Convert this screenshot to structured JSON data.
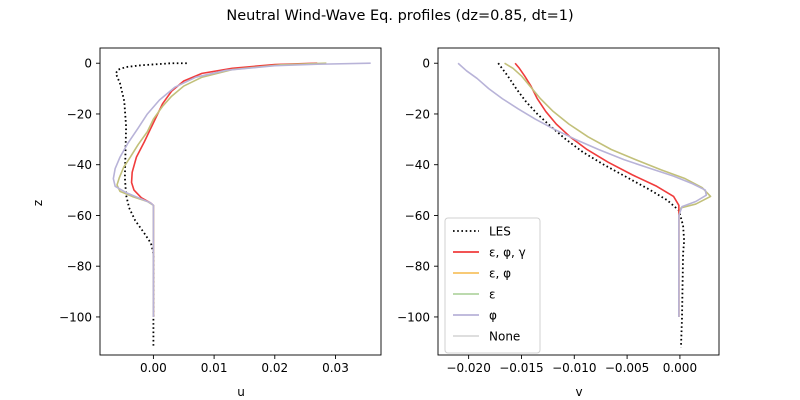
{
  "figure": {
    "title": "Neutral Wind-Wave Eq. profiles (dz=0.85, dt=1)"
  },
  "colors": {
    "LES": "#000000",
    "ε, φ, γ": "#f03c3c",
    "ε, φ": "#f7c262",
    "ε": "#b3d4a2",
    "φ": "#b8b3d8",
    "None": "#d9d9d9",
    "olive_overlap": "#c2c07a"
  },
  "chart_data": [
    {
      "type": "line",
      "title": "",
      "xlabel": "u",
      "ylabel": "z",
      "xlim": [
        -0.0088,
        0.0375
      ],
      "ylim": [
        -115,
        6
      ],
      "xticks": [
        0.0,
        0.01,
        0.02,
        0.03
      ],
      "xtick_labels": [
        "0.00",
        "0.01",
        "0.02",
        "0.03"
      ],
      "yticks": [
        0,
        -20,
        -40,
        -60,
        -80,
        -100
      ],
      "ytick_labels": [
        "0",
        "−20",
        "−40",
        "−60",
        "−80",
        "−100"
      ],
      "grid": false,
      "series": [
        {
          "name": "LES",
          "style": "dotted",
          "x": [
            0.0055,
            0.003,
            0.0005,
            -0.002,
            -0.0045,
            -0.0058,
            -0.0062,
            -0.0055,
            -0.0048,
            -0.0045,
            -0.0046,
            -0.0047,
            -0.0045,
            -0.004,
            -0.003,
            -0.0015,
            -0.0004,
            0.0,
            0.0,
            0.0
          ],
          "y": [
            0,
            0,
            -0.4,
            -0.8,
            -1.5,
            -2.5,
            -4,
            -8,
            -15,
            -25,
            -35,
            -45,
            -52,
            -57,
            -62,
            -67,
            -71,
            -75,
            -100,
            -112
          ]
        },
        {
          "name": "ε, φ, γ",
          "style": "solid",
          "x": [
            0.027,
            0.02,
            0.013,
            0.008,
            0.005,
            0.003,
            0.0015,
            0.0005,
            -0.0005,
            -0.0015,
            -0.0028,
            -0.0035,
            -0.0036,
            -0.0032,
            -0.002,
            -0.0005,
            0.0,
            0.0,
            0.0
          ],
          "y": [
            0,
            -0.5,
            -2,
            -4,
            -7,
            -11,
            -16,
            -21,
            -26,
            -31,
            -37,
            -43,
            -47,
            -50,
            -53,
            -55,
            -56,
            -60,
            -100
          ]
        },
        {
          "name": "ε, φ",
          "style": "solid",
          "x": [
            0.0285,
            0.021,
            0.013,
            0.008,
            0.005,
            0.003,
            0.0015,
            0.0,
            -0.001,
            -0.0025,
            -0.0038,
            -0.0049,
            -0.0056,
            -0.006,
            -0.0055,
            -0.0035,
            -0.001,
            0.0,
            0.0,
            0.0
          ],
          "y": [
            0,
            -0.6,
            -2.5,
            -5.5,
            -9,
            -13,
            -17,
            -22,
            -27,
            -32,
            -37,
            -41,
            -45,
            -48,
            -50.5,
            -52.5,
            -54.5,
            -56,
            -60,
            -100
          ]
        },
        {
          "name": "ε",
          "style": "solid",
          "x": [],
          "y": []
        },
        {
          "name": "φ",
          "style": "solid",
          "x": [
            0.0358,
            0.027,
            0.02,
            0.012,
            0.007,
            0.0035,
            0.001,
            -0.001,
            -0.0025,
            -0.0042,
            -0.0055,
            -0.0063,
            -0.0066,
            -0.0063,
            -0.0045,
            -0.0025,
            -0.0005,
            0.0,
            0.0,
            0.0
          ],
          "y": [
            0,
            -0.4,
            -1.0,
            -2.8,
            -5.5,
            -9.5,
            -14.5,
            -20,
            -25.5,
            -31.5,
            -37,
            -41.5,
            -45.5,
            -48.5,
            -51,
            -53,
            -55,
            -56,
            -60,
            -100
          ]
        },
        {
          "name": "None",
          "style": "solid",
          "x": [],
          "y": []
        }
      ]
    },
    {
      "type": "line",
      "title": "",
      "xlabel": "v",
      "ylabel": "",
      "xlim": [
        -0.0229,
        0.0037
      ],
      "ylim": [
        -115,
        6
      ],
      "xticks": [
        -0.02,
        -0.015,
        -0.01,
        -0.005,
        0.0
      ],
      "xtick_labels": [
        "−0.020",
        "−0.015",
        "−0.010",
        "−0.005",
        "0.000"
      ],
      "yticks": [
        0,
        -20,
        -40,
        -60,
        -80,
        -100
      ],
      "ytick_labels": [
        "0",
        "−20",
        "−40",
        "−60",
        "−80",
        "−100"
      ],
      "grid": false,
      "legend": "lower-left",
      "series": [
        {
          "name": "LES",
          "style": "dotted",
          "x": [
            -0.0172,
            -0.0163,
            -0.0155,
            -0.0146,
            -0.0135,
            -0.0122,
            -0.0108,
            -0.0092,
            -0.0072,
            -0.005,
            -0.0028,
            -0.0012,
            -0.0001,
            0.0003,
            0.0004,
            0.0003,
            0.0002,
            0.0001
          ],
          "y": [
            0,
            -5,
            -10,
            -15,
            -20,
            -25,
            -30,
            -35,
            -40,
            -45,
            -50,
            -54,
            -58,
            -64,
            -70,
            -75,
            -100,
            -112
          ]
        },
        {
          "name": "ε, φ, γ",
          "style": "solid",
          "x": [
            -0.0156,
            -0.0152,
            -0.0147,
            -0.0141,
            -0.0135,
            -0.0127,
            -0.0117,
            -0.0104,
            -0.0088,
            -0.0068,
            -0.0045,
            -0.0022,
            -0.0006,
            -0.0001,
            -0.0001,
            -0.0001
          ],
          "y": [
            0,
            -2,
            -5,
            -9,
            -14,
            -19,
            -24,
            -29,
            -34,
            -39,
            -44,
            -48.5,
            -52.5,
            -56,
            -60,
            -100
          ]
        },
        {
          "name": "ε, φ",
          "style": "solid",
          "x": [
            -0.0166,
            -0.0158,
            -0.015,
            -0.0142,
            -0.0132,
            -0.012,
            -0.0105,
            -0.0087,
            -0.0065,
            -0.0042,
            -0.0018,
            0.0005,
            0.0021,
            0.0029,
            0.0015,
            0.0001,
            -0.0001,
            -0.0001
          ],
          "y": [
            0,
            -2,
            -5,
            -9,
            -14,
            -19,
            -24,
            -29,
            -34,
            -38,
            -42,
            -45.5,
            -49,
            -52.5,
            -55.5,
            -57,
            -60,
            -100
          ]
        },
        {
          "name": "ε",
          "style": "solid",
          "x": [],
          "y": []
        },
        {
          "name": "φ",
          "style": "solid",
          "x": [
            -0.021,
            -0.0202,
            -0.0192,
            -0.0181,
            -0.0168,
            -0.0153,
            -0.0137,
            -0.0119,
            -0.0099,
            -0.0077,
            -0.0053,
            -0.0028,
            -0.0006,
            0.0012,
            0.0024,
            0.0025,
            0.0015,
            0.0002,
            -0.0001,
            -0.0001
          ],
          "y": [
            0,
            -3,
            -6,
            -10,
            -14,
            -18,
            -22,
            -26,
            -30,
            -34,
            -38,
            -41.5,
            -44.5,
            -47.5,
            -50,
            -52,
            -54.5,
            -56.5,
            -60,
            -100
          ]
        },
        {
          "name": "None",
          "style": "solid",
          "x": [],
          "y": []
        }
      ]
    }
  ]
}
